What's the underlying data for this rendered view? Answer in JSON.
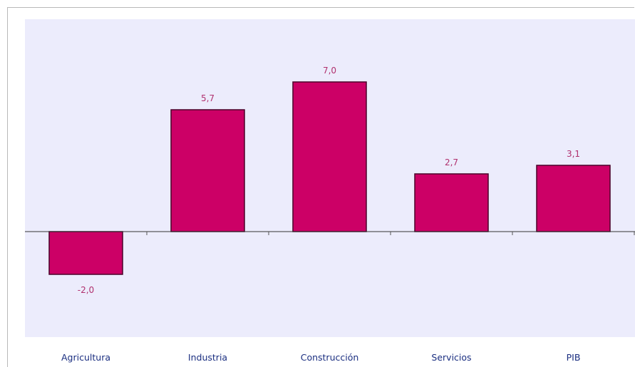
{
  "colors": {
    "plot_background": "#ececfc",
    "bar_fill": "#cc0066",
    "bar_border": "#4a0028",
    "data_label": "#b0306e",
    "category_label": "#1a2e80"
  },
  "chart_data": {
    "type": "bar",
    "categories": [
      "Agricultura",
      "Industria",
      "Construcción",
      "Servicios",
      "PIB"
    ],
    "values": [
      -2.0,
      5.7,
      7.0,
      2.7,
      3.1
    ],
    "data_labels": [
      "-2,0",
      "5,7",
      "7,0",
      "2,7",
      "3,1"
    ],
    "title": "",
    "xlabel": "",
    "ylabel": "",
    "ylim": [
      -4,
      8
    ],
    "grid": false,
    "legend": "none"
  }
}
